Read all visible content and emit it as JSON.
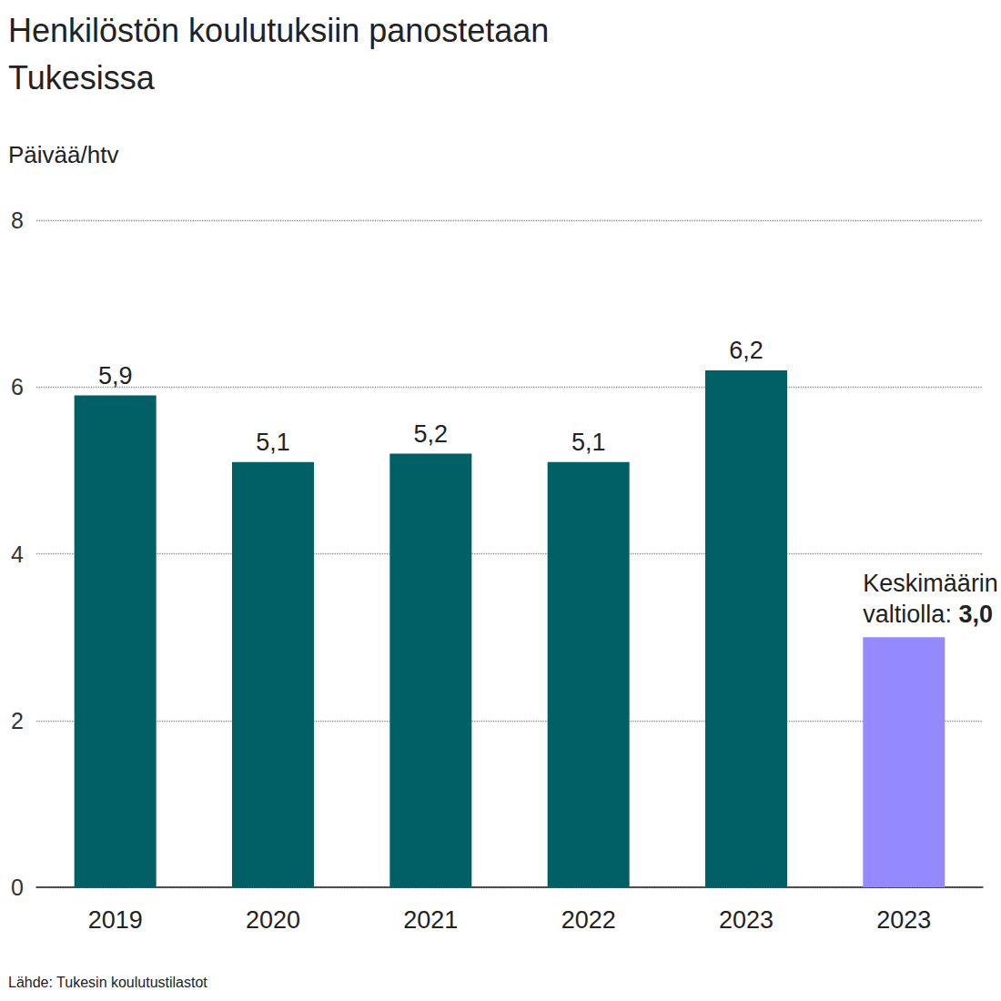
{
  "chart_data": {
    "type": "bar",
    "title": "Henkilöstön koulutuksiin panostetaan Tukesissa",
    "y_label": "Päivää/htv",
    "source": "Lähde: Tukesin koulutustilastot",
    "categories": [
      "2019",
      "2020",
      "2021",
      "2022",
      "2023",
      "2023"
    ],
    "values": [
      5.9,
      5.1,
      5.2,
      5.1,
      6.2,
      3.0
    ],
    "value_labels": [
      "5,9",
      "5,1",
      "5,2",
      "5,1",
      "6,2",
      "3,0"
    ],
    "colors": [
      "#006066",
      "#006066",
      "#006066",
      "#006066",
      "#006066",
      "#9589ff"
    ],
    "annotation": {
      "text": "Keskimäärin valtiolla:",
      "bar": 5
    },
    "data_labels": true,
    "ylim": [
      0,
      8
    ],
    "yticks": [
      0,
      2,
      4,
      6,
      8
    ],
    "grid": true
  }
}
